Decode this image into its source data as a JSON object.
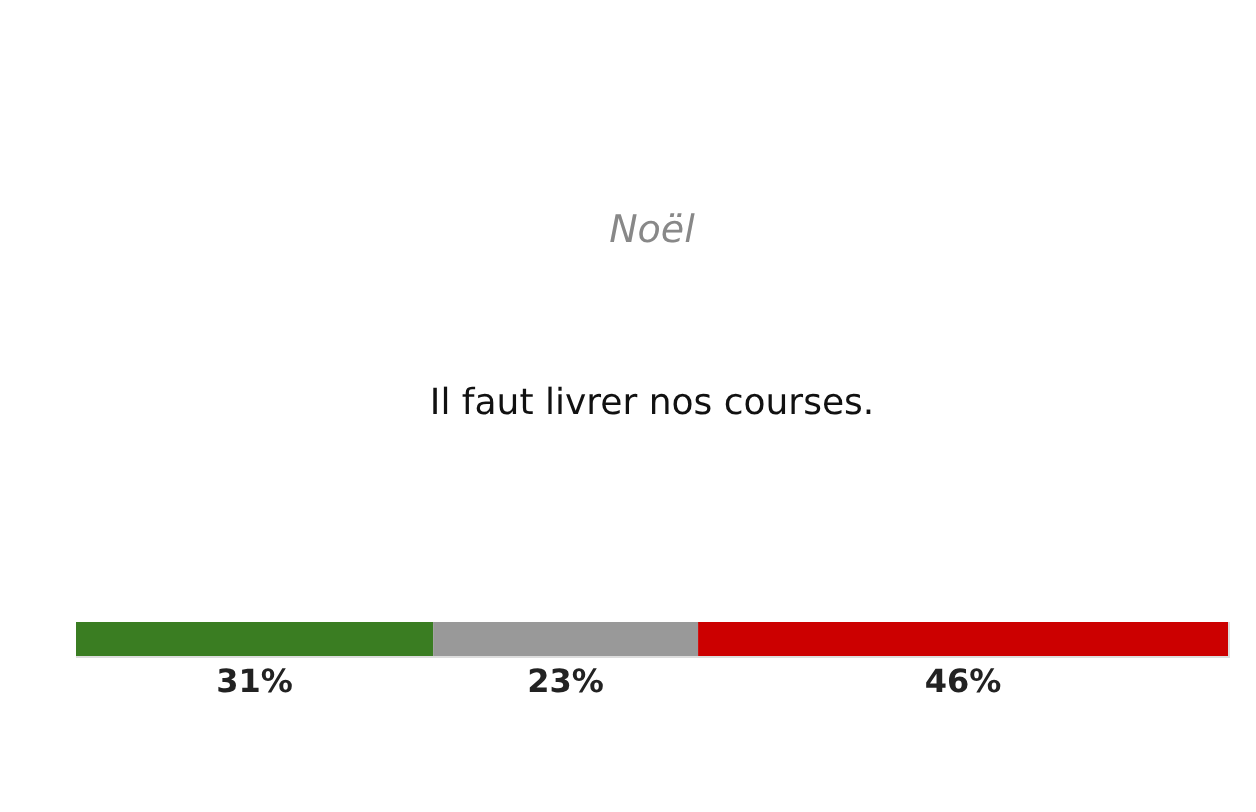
{
  "chart_data": {
    "type": "bar",
    "orientation": "horizontal",
    "stacked": true,
    "title": "Noël",
    "subtitle": "Il faut livrer nos courses.",
    "categories": [
      null
    ],
    "xlim": [
      0,
      100
    ],
    "tick_labels": false,
    "series": [
      {
        "color": "#3a7d22",
        "values": [
          31
        ],
        "value_labels": [
          "31%"
        ]
      },
      {
        "color": "#999999",
        "values": [
          23
        ],
        "value_labels": [
          "23%"
        ]
      },
      {
        "color": "#cc0000",
        "values": [
          46
        ],
        "value_labels": [
          "46%"
        ]
      }
    ]
  }
}
